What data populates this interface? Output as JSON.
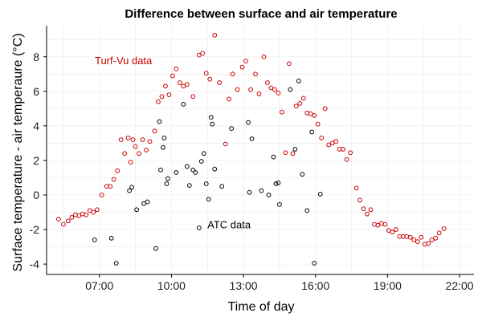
{
  "chart_data": {
    "type": "scatter",
    "title": "Difference between surface and air temperature",
    "xlabel": "Time of day",
    "ylabel": "Surface temperature - air temperaure (°C)",
    "xlim": [
      4.8,
      22.6
    ],
    "ylim": [
      -4.6,
      9.8
    ],
    "x_ticks": [
      {
        "value": 7,
        "label": "07:00"
      },
      {
        "value": 10,
        "label": "10:00"
      },
      {
        "value": 13,
        "label": "13:00"
      },
      {
        "value": 16,
        "label": "16:00"
      },
      {
        "value": 19,
        "label": "19:00"
      },
      {
        "value": 22,
        "label": "22:00"
      }
    ],
    "y_ticks": [
      -4,
      -2,
      0,
      2,
      4,
      6,
      8
    ],
    "grid": true,
    "legend": "none",
    "series": [
      {
        "name": "Turf-Vu data",
        "color": "#cc0000",
        "label_position": [
          8.0,
          7.8
        ],
        "points": [
          [
            5.3,
            -1.4
          ],
          [
            5.5,
            -1.7
          ],
          [
            5.7,
            -1.5
          ],
          [
            5.85,
            -1.3
          ],
          [
            6.0,
            -1.15
          ],
          [
            6.15,
            -1.2
          ],
          [
            6.3,
            -1.1
          ],
          [
            6.45,
            -1.15
          ],
          [
            6.6,
            -0.9
          ],
          [
            6.75,
            -1.0
          ],
          [
            6.9,
            -0.85
          ],
          [
            7.1,
            0.0
          ],
          [
            7.3,
            0.5
          ],
          [
            7.45,
            0.5
          ],
          [
            7.6,
            0.9
          ],
          [
            7.75,
            1.4
          ],
          [
            7.9,
            3.2
          ],
          [
            8.05,
            2.4
          ],
          [
            8.2,
            3.3
          ],
          [
            8.3,
            1.9
          ],
          [
            8.4,
            3.2
          ],
          [
            8.5,
            2.8
          ],
          [
            8.65,
            2.4
          ],
          [
            8.8,
            3.2
          ],
          [
            8.95,
            2.6
          ],
          [
            9.1,
            3.1
          ],
          [
            9.3,
            3.7
          ],
          [
            9.45,
            5.4
          ],
          [
            9.6,
            5.7
          ],
          [
            9.75,
            6.3
          ],
          [
            9.9,
            5.8
          ],
          [
            10.05,
            6.9
          ],
          [
            10.2,
            7.3
          ],
          [
            10.35,
            6.5
          ],
          [
            10.5,
            6.3
          ],
          [
            10.65,
            6.4
          ],
          [
            10.9,
            5.7
          ],
          [
            11.15,
            8.1
          ],
          [
            11.3,
            8.2
          ],
          [
            11.45,
            7.05
          ],
          [
            11.6,
            6.7
          ],
          [
            11.8,
            9.25
          ],
          [
            12.0,
            6.5
          ],
          [
            12.25,
            2.95
          ],
          [
            12.4,
            5.55
          ],
          [
            12.55,
            7.0
          ],
          [
            12.75,
            6.1
          ],
          [
            12.95,
            7.4
          ],
          [
            13.1,
            7.75
          ],
          [
            13.3,
            6.1
          ],
          [
            13.5,
            7.0
          ],
          [
            13.65,
            5.85
          ],
          [
            13.85,
            8.0
          ],
          [
            14.0,
            6.5
          ],
          [
            14.15,
            6.2
          ],
          [
            14.3,
            6.1
          ],
          [
            14.45,
            5.9
          ],
          [
            14.6,
            4.8
          ],
          [
            14.75,
            2.45
          ],
          [
            14.9,
            7.6
          ],
          [
            15.05,
            2.4
          ],
          [
            15.2,
            5.15
          ],
          [
            15.35,
            5.3
          ],
          [
            15.5,
            5.6
          ],
          [
            15.65,
            4.75
          ],
          [
            15.8,
            4.7
          ],
          [
            15.95,
            4.6
          ],
          [
            16.1,
            4.1
          ],
          [
            16.25,
            3.3
          ],
          [
            16.4,
            5.0
          ],
          [
            16.55,
            2.9
          ],
          [
            16.7,
            3.0
          ],
          [
            16.85,
            3.1
          ],
          [
            17.0,
            2.65
          ],
          [
            17.15,
            2.65
          ],
          [
            17.3,
            2.05
          ],
          [
            17.45,
            2.45
          ],
          [
            17.7,
            0.4
          ],
          [
            17.85,
            -0.3
          ],
          [
            18.0,
            -0.8
          ],
          [
            18.15,
            -1.1
          ],
          [
            18.3,
            -0.85
          ],
          [
            18.45,
            -1.7
          ],
          [
            18.6,
            -1.75
          ],
          [
            18.75,
            -1.65
          ],
          [
            18.9,
            -1.7
          ],
          [
            19.05,
            -2.05
          ],
          [
            19.2,
            -2.15
          ],
          [
            19.35,
            -2.0
          ],
          [
            19.5,
            -2.4
          ],
          [
            19.65,
            -2.4
          ],
          [
            19.8,
            -2.4
          ],
          [
            19.95,
            -2.45
          ],
          [
            20.1,
            -2.6
          ],
          [
            20.25,
            -2.7
          ],
          [
            20.4,
            -2.45
          ],
          [
            20.55,
            -2.85
          ],
          [
            20.7,
            -2.8
          ],
          [
            20.85,
            -2.6
          ],
          [
            21.0,
            -2.5
          ],
          [
            21.15,
            -2.2
          ],
          [
            21.35,
            -1.95
          ]
        ]
      },
      {
        "name": "ATC data",
        "color": "#000000",
        "label_position": [
          12.4,
          -1.7
        ],
        "points": [
          [
            6.8,
            -2.6
          ],
          [
            7.5,
            -2.5
          ],
          [
            7.7,
            -3.95
          ],
          [
            8.25,
            0.25
          ],
          [
            8.35,
            0.45
          ],
          [
            8.55,
            -0.85
          ],
          [
            8.85,
            -0.5
          ],
          [
            9.0,
            -0.4
          ],
          [
            9.35,
            -3.1
          ],
          [
            9.5,
            4.25
          ],
          [
            9.55,
            1.45
          ],
          [
            9.65,
            2.75
          ],
          [
            9.7,
            3.3
          ],
          [
            9.8,
            0.65
          ],
          [
            9.85,
            0.95
          ],
          [
            10.2,
            1.3
          ],
          [
            10.5,
            5.25
          ],
          [
            10.65,
            1.65
          ],
          [
            10.75,
            0.55
          ],
          [
            10.9,
            1.45
          ],
          [
            11.0,
            1.3
          ],
          [
            11.15,
            -1.9
          ],
          [
            11.25,
            1.95
          ],
          [
            11.35,
            2.4
          ],
          [
            11.45,
            0.65
          ],
          [
            11.55,
            -0.25
          ],
          [
            11.65,
            4.5
          ],
          [
            11.7,
            4.1
          ],
          [
            11.8,
            1.5
          ],
          [
            12.1,
            0.5
          ],
          [
            12.5,
            3.85
          ],
          [
            13.2,
            4.2
          ],
          [
            13.25,
            0.15
          ],
          [
            13.35,
            3.25
          ],
          [
            13.75,
            0.25
          ],
          [
            14.05,
            0.0
          ],
          [
            14.25,
            2.2
          ],
          [
            14.35,
            0.65
          ],
          [
            14.45,
            0.7
          ],
          [
            14.5,
            -0.55
          ],
          [
            14.95,
            6.1
          ],
          [
            15.15,
            2.65
          ],
          [
            15.3,
            6.6
          ],
          [
            15.45,
            1.2
          ],
          [
            15.65,
            -0.9
          ],
          [
            15.85,
            3.65
          ],
          [
            15.95,
            -3.95
          ],
          [
            16.2,
            0.05
          ]
        ]
      }
    ]
  }
}
